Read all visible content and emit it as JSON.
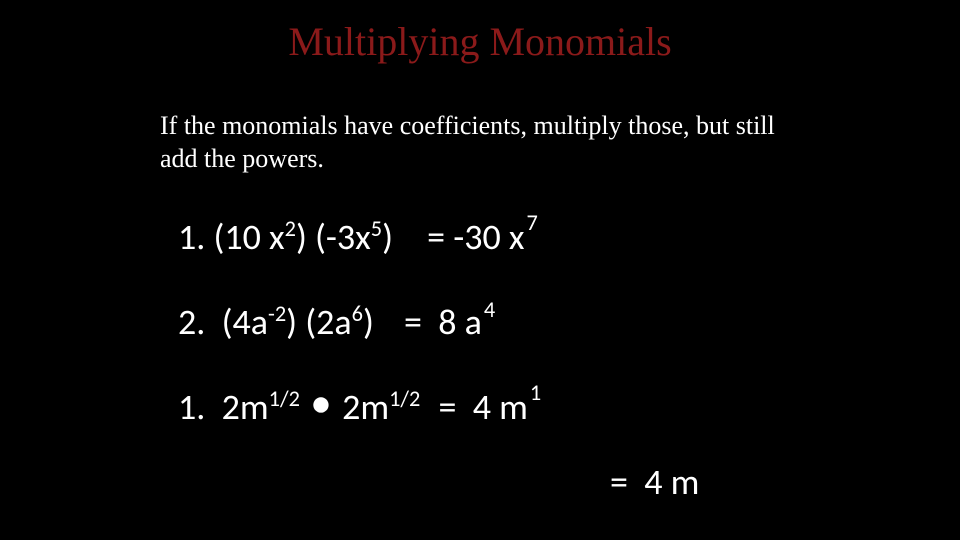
{
  "colors": {
    "background": "#000000",
    "title": "#8b1a1a",
    "text": "#ffffff"
  },
  "fonts": {
    "title_family": "Georgia, Times New Roman, serif",
    "title_size_pt": 30,
    "body_family": "Georgia, Times New Roman, serif",
    "body_size_pt": 20,
    "math_family": "Segoe UI, Calibri, Arial, sans-serif",
    "math_size_pt": 27
  },
  "title": "Multiplying Monomials",
  "intro": "If the monomials have coefficients, multiply those, but still add the powers.",
  "equations": {
    "e1": {
      "num": "1.",
      "lhs_p1": "(10 x",
      "lhs_e1": "2",
      "lhs_p2": ") (-3x",
      "lhs_e2": "5",
      "lhs_p3": ")",
      "eq": "=",
      "rhs_coef": "-30 x",
      "rhs_exp": "7"
    },
    "e2": {
      "num": "2.",
      "lhs_p1": "(4a",
      "lhs_e1": "-2",
      "lhs_p2": ") (2a",
      "lhs_e2": "6",
      "lhs_p3": ")",
      "eq": "=",
      "rhs_coef": "8 a",
      "rhs_exp": "4"
    },
    "e3": {
      "num": "1.",
      "lhs_p1": "2m",
      "lhs_e1": "1/2",
      "dot": "•",
      "lhs_p2": "2m",
      "lhs_e2": "1/2",
      "eq": "=",
      "rhs_coef": "4 m",
      "rhs_exp": "1"
    },
    "e4": {
      "eq": "=",
      "rhs": "4 m"
    }
  }
}
